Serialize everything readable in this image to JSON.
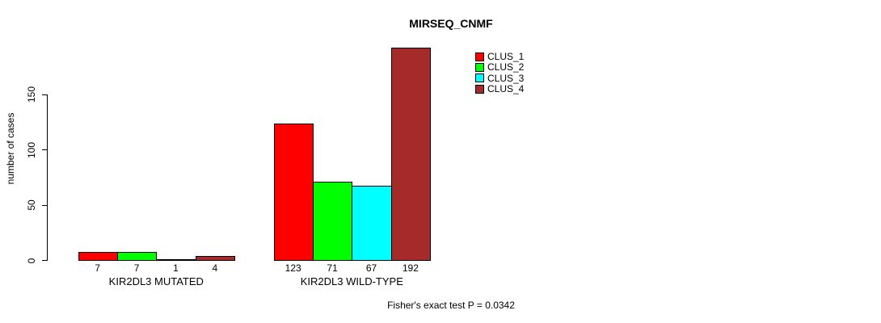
{
  "chart_data": {
    "type": "bar",
    "title": "MIRSEQ_CNMF",
    "ylabel": "number of cases",
    "xlabel": "",
    "ylim": [
      0,
      193
    ],
    "yticks": [
      0,
      50,
      100,
      150
    ],
    "grid": false,
    "legend_position": "top-right",
    "categories": [
      "KIR2DL3 MUTATED",
      "KIR2DL3 WILD-TYPE"
    ],
    "series": [
      {
        "name": "CLUS_1",
        "color": "#ff0000",
        "values": [
          7,
          123
        ]
      },
      {
        "name": "CLUS_2",
        "color": "#00ff00",
        "values": [
          7,
          71
        ]
      },
      {
        "name": "CLUS_3",
        "color": "#00ffff",
        "values": [
          1,
          67
        ]
      },
      {
        "name": "CLUS_4",
        "color": "#a52a2a",
        "values": [
          4,
          192
        ]
      }
    ],
    "annotation": "Fisher's exact test P = 0.0342",
    "colors": {
      "axis": "#000000",
      "bar_border": "#000000",
      "background": "#ffffff",
      "text": "#000000"
    }
  }
}
